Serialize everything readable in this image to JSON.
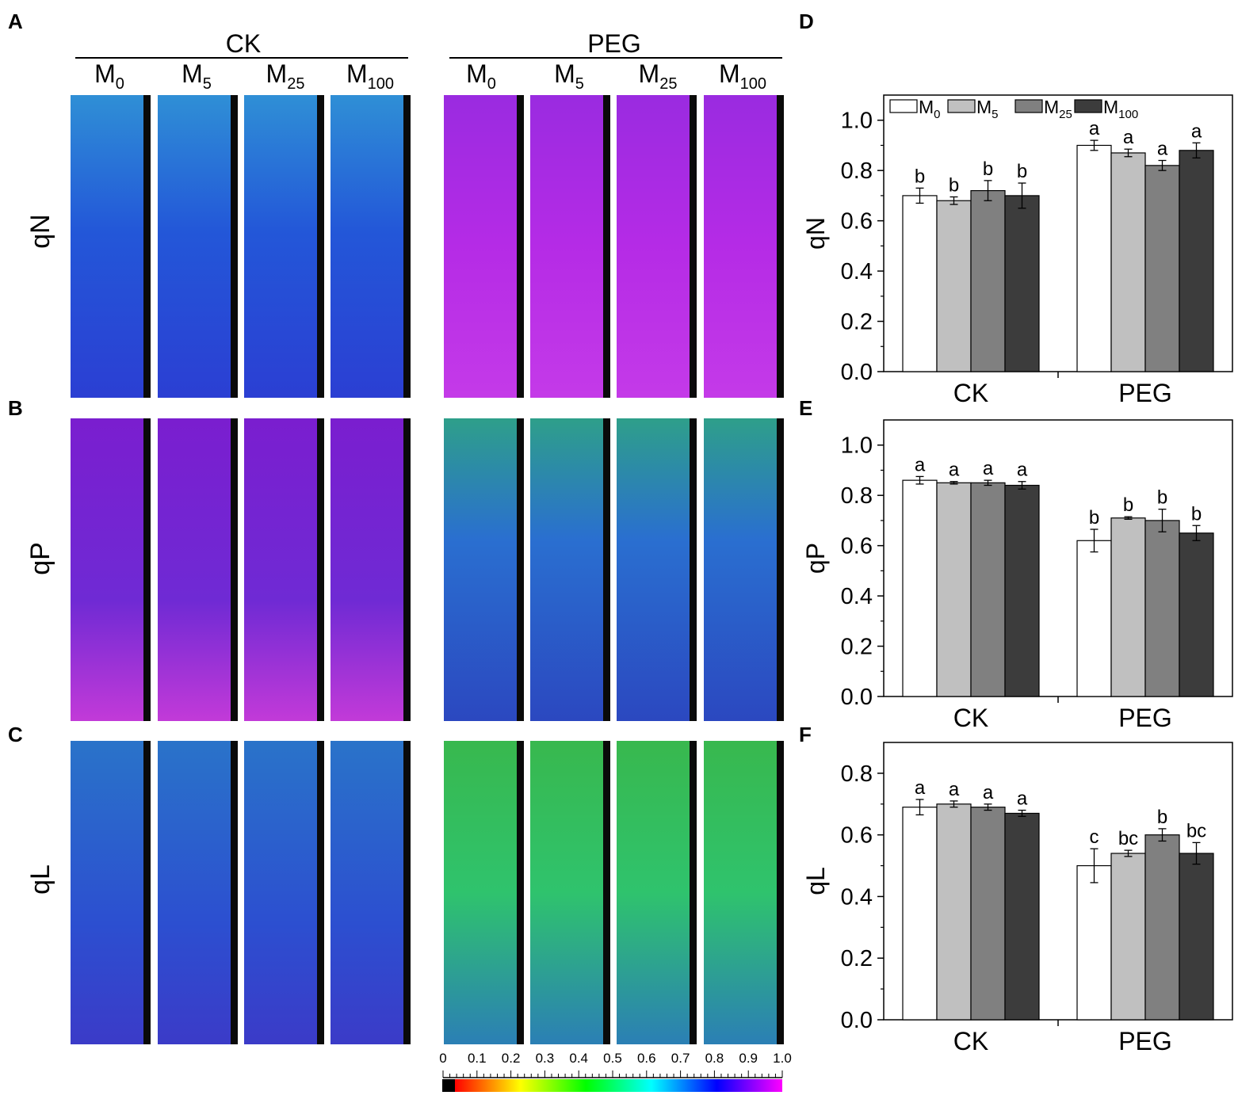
{
  "panel_letters": [
    "A",
    "B",
    "C",
    "D",
    "E",
    "F"
  ],
  "groups": [
    "CK",
    "PEG"
  ],
  "treatments": [
    {
      "base": "M",
      "sub": "0"
    },
    {
      "base": "M",
      "sub": "5"
    },
    {
      "base": "M",
      "sub": "25"
    },
    {
      "base": "M",
      "sub": "100"
    }
  ],
  "row_labels": [
    "qN",
    "qP",
    "qL"
  ],
  "colorbar": {
    "ticks": [
      "0",
      "0.1",
      "0.2",
      "0.3",
      "0.4",
      "0.5",
      "0.6",
      "0.7",
      "0.8",
      "0.9",
      "1.0"
    ],
    "stops": [
      "#ff0000",
      "#ff8000",
      "#ffff00",
      "#80ff00",
      "#00ff00",
      "#00ff80",
      "#00ffff",
      "#0080ff",
      "#0000ff",
      "#8000ff",
      "#ff00ff"
    ]
  },
  "colors": {
    "M0": "#ffffff",
    "M5": "#c0c0c0",
    "M25": "#808080",
    "M100": "#3c3c3c"
  },
  "chart_data": [
    {
      "type": "bar",
      "panel": "D",
      "categories": [
        "CK",
        "PEG"
      ],
      "ylabel": "qN",
      "ylim": [
        0,
        1.1
      ],
      "yticks": [
        "0.0",
        "0.2",
        "0.4",
        "0.6",
        "0.8",
        "1.0"
      ],
      "legend": [
        "M0",
        "M5",
        "M25",
        "M100"
      ],
      "legend_position": "top-left",
      "series": [
        {
          "name": "M0",
          "values": [
            0.7,
            0.9
          ],
          "errors": [
            0.03,
            0.02
          ],
          "letters": [
            "b",
            "a"
          ]
        },
        {
          "name": "M5",
          "values": [
            0.68,
            0.87
          ],
          "errors": [
            0.015,
            0.015
          ],
          "letters": [
            "b",
            "a"
          ]
        },
        {
          "name": "M25",
          "values": [
            0.72,
            0.82
          ],
          "errors": [
            0.04,
            0.02
          ],
          "letters": [
            "b",
            "a"
          ]
        },
        {
          "name": "M100",
          "values": [
            0.7,
            0.88
          ],
          "errors": [
            0.05,
            0.03
          ],
          "letters": [
            "b",
            "a"
          ]
        }
      ]
    },
    {
      "type": "bar",
      "panel": "E",
      "categories": [
        "CK",
        "PEG"
      ],
      "ylabel": "qP",
      "ylim": [
        0,
        1.1
      ],
      "yticks": [
        "0.0",
        "0.2",
        "0.4",
        "0.6",
        "0.8",
        "1.0"
      ],
      "series": [
        {
          "name": "M0",
          "values": [
            0.86,
            0.62
          ],
          "errors": [
            0.015,
            0.045
          ],
          "letters": [
            "a",
            "b"
          ]
        },
        {
          "name": "M5",
          "values": [
            0.85,
            0.71
          ],
          "errors": [
            0.005,
            0.005
          ],
          "letters": [
            "a",
            "b"
          ]
        },
        {
          "name": "M25",
          "values": [
            0.85,
            0.7
          ],
          "errors": [
            0.01,
            0.045
          ],
          "letters": [
            "a",
            "b"
          ]
        },
        {
          "name": "M100",
          "values": [
            0.84,
            0.65
          ],
          "errors": [
            0.015,
            0.03
          ],
          "letters": [
            "a",
            "b"
          ]
        }
      ]
    },
    {
      "type": "bar",
      "panel": "F",
      "categories": [
        "CK",
        "PEG"
      ],
      "ylabel": "qL",
      "ylim": [
        0,
        0.9
      ],
      "yticks": [
        "0.0",
        "0.2",
        "0.4",
        "0.6",
        "0.8"
      ],
      "series": [
        {
          "name": "M0",
          "values": [
            0.69,
            0.5
          ],
          "errors": [
            0.025,
            0.055
          ],
          "letters": [
            "a",
            "c"
          ]
        },
        {
          "name": "M5",
          "values": [
            0.7,
            0.54
          ],
          "errors": [
            0.01,
            0.01
          ],
          "letters": [
            "a",
            "bc"
          ]
        },
        {
          "name": "M25",
          "values": [
            0.69,
            0.6
          ],
          "errors": [
            0.01,
            0.02
          ],
          "letters": [
            "a",
            "b"
          ]
        },
        {
          "name": "M100",
          "values": [
            0.67,
            0.54
          ],
          "errors": [
            0.01,
            0.035
          ],
          "letters": [
            "a",
            "bc"
          ]
        }
      ]
    }
  ]
}
